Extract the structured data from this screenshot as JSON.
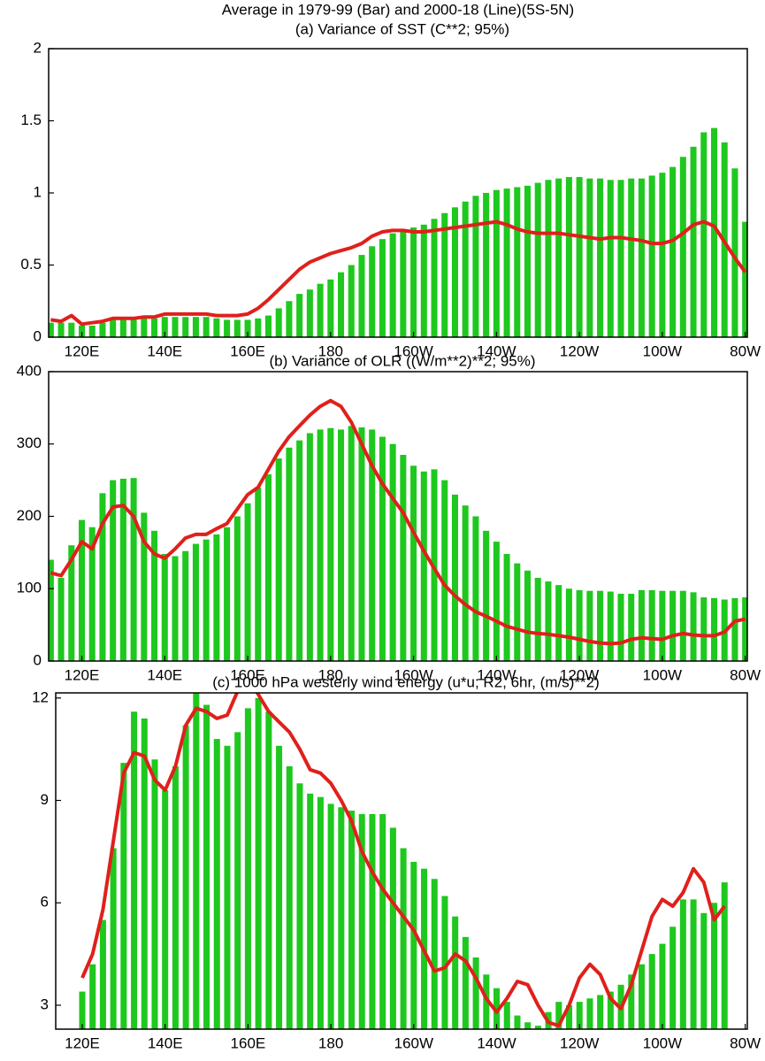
{
  "title": "Average in 1979-99 (Bar) and 2000-18 (Line)(5S-5N)",
  "chart_data": [
    {
      "type": "bar",
      "title": "(a) Variance of SST (C**2; 95%)",
      "x": [
        112.5,
        115,
        117.5,
        120,
        122.5,
        125,
        127.5,
        130,
        132.5,
        135,
        137.5,
        140,
        142.5,
        145,
        147.5,
        150,
        152.5,
        155,
        157.5,
        160,
        162.5,
        165,
        167.5,
        170,
        172.5,
        175,
        177.5,
        180,
        182.5,
        185,
        187.5,
        190,
        192.5,
        195,
        197.5,
        200,
        202.5,
        205,
        207.5,
        210,
        212.5,
        215,
        217.5,
        220,
        222.5,
        225,
        227.5,
        230,
        232.5,
        235,
        237.5,
        240,
        242.5,
        245,
        247.5,
        250,
        252.5,
        255,
        257.5,
        260,
        262.5,
        265,
        267.5,
        270,
        272.5,
        275,
        277.5,
        280
      ],
      "series": [
        {
          "type": "bar",
          "color": "#1ec81e",
          "values": [
            0.1,
            0.1,
            0.1,
            0.08,
            0.08,
            0.1,
            0.12,
            0.12,
            0.13,
            0.13,
            0.13,
            0.14,
            0.14,
            0.14,
            0.14,
            0.14,
            0.13,
            0.12,
            0.12,
            0.12,
            0.13,
            0.15,
            0.2,
            0.25,
            0.3,
            0.33,
            0.37,
            0.4,
            0.45,
            0.5,
            0.57,
            0.63,
            0.68,
            0.72,
            0.74,
            0.76,
            0.78,
            0.82,
            0.86,
            0.9,
            0.94,
            0.98,
            1.0,
            1.02,
            1.03,
            1.04,
            1.05,
            1.07,
            1.09,
            1.1,
            1.11,
            1.11,
            1.1,
            1.1,
            1.09,
            1.09,
            1.1,
            1.1,
            1.12,
            1.14,
            1.18,
            1.25,
            1.32,
            1.42,
            1.45,
            1.35,
            1.17,
            0.8
          ]
        },
        {
          "type": "line",
          "color": "#e0201b",
          "values": [
            0.12,
            0.11,
            0.15,
            0.09,
            0.1,
            0.11,
            0.13,
            0.13,
            0.13,
            0.14,
            0.14,
            0.16,
            0.16,
            0.16,
            0.16,
            0.16,
            0.15,
            0.15,
            0.15,
            0.16,
            0.2,
            0.26,
            0.33,
            0.4,
            0.47,
            0.52,
            0.55,
            0.58,
            0.6,
            0.62,
            0.65,
            0.7,
            0.73,
            0.74,
            0.74,
            0.73,
            0.73,
            0.74,
            0.75,
            0.76,
            0.77,
            0.78,
            0.79,
            0.8,
            0.78,
            0.75,
            0.73,
            0.72,
            0.72,
            0.72,
            0.71,
            0.7,
            0.69,
            0.68,
            0.69,
            0.69,
            0.68,
            0.67,
            0.65,
            0.65,
            0.67,
            0.72,
            0.78,
            0.8,
            0.77,
            0.66,
            0.55,
            0.45
          ]
        }
      ],
      "xlim": [
        112,
        280.5
      ],
      "ylim": [
        0,
        2
      ],
      "yticks": [
        0,
        0.5,
        1,
        1.5,
        2
      ],
      "xticks": [
        {
          "value": 120,
          "label": "120E"
        },
        {
          "value": 140,
          "label": "140E"
        },
        {
          "value": 160,
          "label": "160E"
        },
        180,
        {
          "value": 200,
          "label": "160W"
        },
        {
          "value": 220,
          "label": "140W"
        },
        {
          "value": 240,
          "label": "120W"
        },
        {
          "value": 260,
          "label": "100W"
        },
        {
          "value": 280,
          "label": "80W"
        }
      ]
    },
    {
      "type": "bar",
      "title": "(b) Variance of OLR ((W/m**2)**2; 95%)",
      "x": [
        112.5,
        115,
        117.5,
        120,
        122.5,
        125,
        127.5,
        130,
        132.5,
        135,
        137.5,
        140,
        142.5,
        145,
        147.5,
        150,
        152.5,
        155,
        157.5,
        160,
        162.5,
        165,
        167.5,
        170,
        172.5,
        175,
        177.5,
        180,
        182.5,
        185,
        187.5,
        190,
        192.5,
        195,
        197.5,
        200,
        202.5,
        205,
        207.5,
        210,
        212.5,
        215,
        217.5,
        220,
        222.5,
        225,
        227.5,
        230,
        232.5,
        235,
        237.5,
        240,
        242.5,
        245,
        247.5,
        250,
        252.5,
        255,
        257.5,
        260,
        262.5,
        265,
        267.5,
        270,
        272.5,
        275,
        277.5,
        280
      ],
      "series": [
        {
          "type": "bar",
          "color": "#1ec81e",
          "values": [
            140,
            115,
            160,
            195,
            185,
            232,
            250,
            252,
            253,
            205,
            180,
            148,
            145,
            152,
            162,
            168,
            175,
            185,
            200,
            218,
            240,
            258,
            280,
            295,
            305,
            315,
            320,
            322,
            320,
            325,
            323,
            320,
            310,
            300,
            285,
            270,
            262,
            265,
            250,
            230,
            215,
            200,
            180,
            165,
            148,
            135,
            125,
            115,
            110,
            105,
            100,
            98,
            97,
            97,
            96,
            93,
            93,
            98,
            98,
            97,
            97,
            97,
            95,
            88,
            87,
            85,
            87,
            88
          ]
        },
        {
          "type": "line",
          "color": "#e0201b",
          "values": [
            122,
            118,
            140,
            165,
            155,
            190,
            213,
            215,
            200,
            165,
            148,
            142,
            155,
            170,
            175,
            175,
            183,
            190,
            210,
            230,
            240,
            265,
            290,
            310,
            325,
            340,
            352,
            360,
            352,
            330,
            300,
            270,
            245,
            225,
            205,
            178,
            152,
            128,
            105,
            90,
            78,
            68,
            62,
            55,
            48,
            44,
            40,
            38,
            37,
            35,
            33,
            30,
            27,
            25,
            24,
            25,
            30,
            32,
            31,
            30,
            35,
            38,
            36,
            35,
            35,
            40,
            55,
            58
          ]
        }
      ],
      "xlim": [
        112,
        280.5
      ],
      "ylim": [
        0,
        400
      ],
      "yticks": [
        0,
        100,
        200,
        300,
        400
      ],
      "xticks": [
        {
          "value": 120,
          "label": "120E"
        },
        {
          "value": 140,
          "label": "140E"
        },
        {
          "value": 160,
          "label": "160E"
        },
        180,
        {
          "value": 200,
          "label": "160W"
        },
        {
          "value": 220,
          "label": "140W"
        },
        {
          "value": 240,
          "label": "120W"
        },
        {
          "value": 260,
          "label": "100W"
        },
        {
          "value": 280,
          "label": "80W"
        }
      ]
    },
    {
      "type": "bar",
      "title": "(c) 1000 hPa westerly wind energy (u*u; R2, 6hr, (m/s)**2)",
      "x": [
        112.5,
        115,
        117.5,
        120,
        122.5,
        125,
        127.5,
        130,
        132.5,
        135,
        137.5,
        140,
        142.5,
        145,
        147.5,
        150,
        152.5,
        155,
        157.5,
        160,
        162.5,
        165,
        167.5,
        170,
        172.5,
        175,
        177.5,
        180,
        182.5,
        185,
        187.5,
        190,
        192.5,
        195,
        197.5,
        200,
        202.5,
        205,
        207.5,
        210,
        212.5,
        215,
        217.5,
        220,
        222.5,
        225,
        227.5,
        230,
        232.5,
        235,
        237.5,
        240,
        242.5,
        245,
        247.5,
        250,
        252.5,
        255,
        257.5,
        260,
        262.5,
        265,
        267.5,
        270,
        272.5,
        275,
        277.5,
        280
      ],
      "series": [
        {
          "type": "bar",
          "color": "#1ec81e",
          "values": [
            null,
            null,
            null,
            3.4,
            4.2,
            5.5,
            7.6,
            10.1,
            11.6,
            11.4,
            10.2,
            9.3,
            10.0,
            11.2,
            12.2,
            11.8,
            10.8,
            10.6,
            11.0,
            11.7,
            12.0,
            11.6,
            10.6,
            10.0,
            9.5,
            9.2,
            9.1,
            8.9,
            8.8,
            8.7,
            8.6,
            8.6,
            8.6,
            8.2,
            7.6,
            7.2,
            7.0,
            6.7,
            6.2,
            5.6,
            5.0,
            4.4,
            3.9,
            3.5,
            3.1,
            2.7,
            2.5,
            2.4,
            2.8,
            3.1,
            3.0,
            3.1,
            3.2,
            3.3,
            3.4,
            3.6,
            3.9,
            4.2,
            4.5,
            4.8,
            5.3,
            6.1,
            6.1,
            5.7,
            6.0,
            6.6,
            null,
            null
          ]
        },
        {
          "type": "line",
          "color": "#e0201b",
          "values": [
            null,
            null,
            null,
            3.8,
            4.5,
            5.8,
            7.8,
            9.8,
            10.4,
            10.3,
            9.6,
            9.3,
            10.0,
            11.2,
            11.7,
            11.6,
            11.4,
            11.5,
            12.2,
            12.6,
            12.1,
            11.6,
            11.3,
            11.0,
            10.5,
            9.9,
            9.8,
            9.5,
            9.0,
            8.4,
            7.5,
            6.9,
            6.4,
            6.0,
            5.6,
            5.2,
            4.6,
            4.0,
            4.1,
            4.5,
            4.3,
            3.8,
            3.2,
            2.8,
            3.2,
            3.7,
            3.6,
            3.0,
            2.5,
            2.4,
            3.0,
            3.8,
            4.2,
            3.9,
            3.2,
            2.9,
            3.6,
            4.6,
            5.6,
            6.1,
            5.9,
            6.3,
            7.0,
            6.6,
            5.5,
            5.9,
            null,
            null
          ]
        }
      ],
      "xlim": [
        113.6,
        280.5
      ],
      "ylim": [
        2.3,
        12.15
      ],
      "yticks": [
        3,
        6,
        9,
        12
      ],
      "xticks": [
        {
          "value": 120,
          "label": "120E"
        },
        {
          "value": 140,
          "label": "140E"
        },
        {
          "value": 160,
          "label": "160E"
        },
        180,
        {
          "value": 200,
          "label": "160W"
        },
        {
          "value": 220,
          "label": "140W"
        },
        {
          "value": 240,
          "label": "120W"
        },
        {
          "value": 260,
          "label": "100W"
        },
        {
          "value": 280,
          "label": "80W"
        }
      ]
    }
  ]
}
